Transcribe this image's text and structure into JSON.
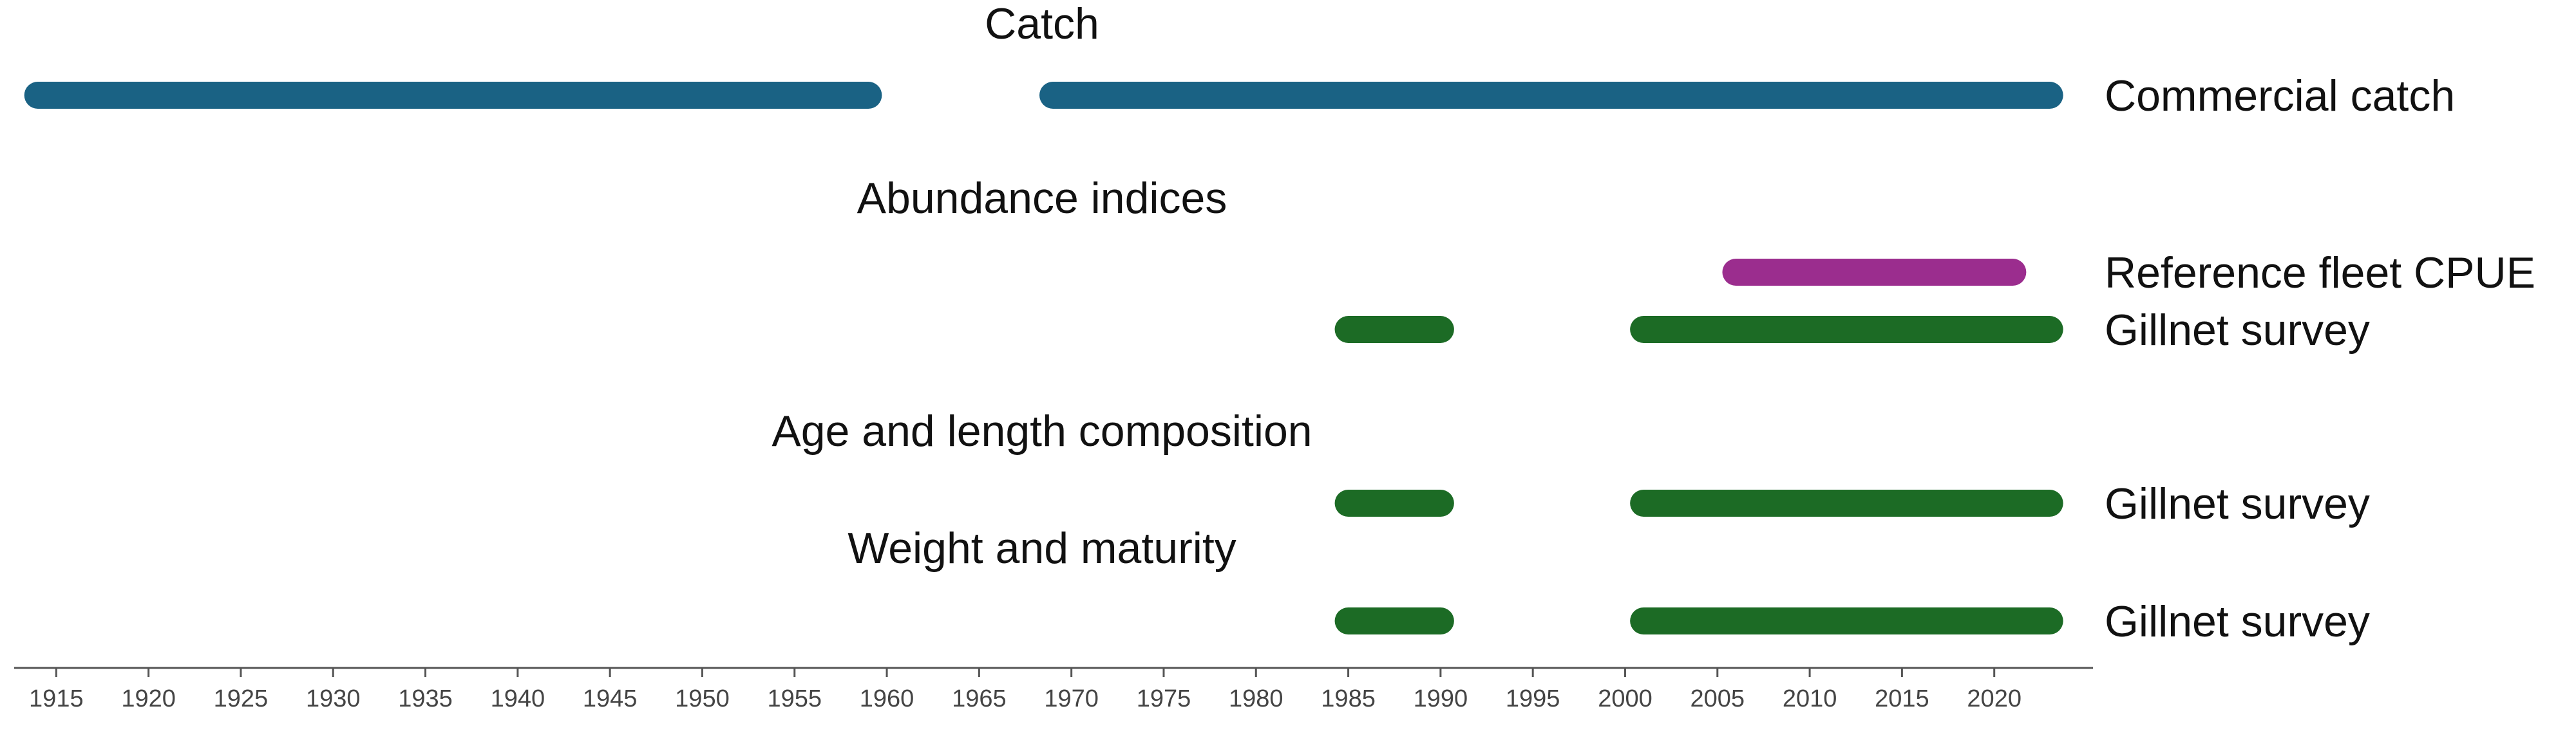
{
  "chart_data": {
    "type": "timeline",
    "x_axis": {
      "min": 1913,
      "max": 2025,
      "ticks": [
        1915,
        1920,
        1925,
        1930,
        1935,
        1940,
        1945,
        1950,
        1955,
        1960,
        1965,
        1970,
        1975,
        1980,
        1985,
        1990,
        1995,
        2000,
        2005,
        2010,
        2015,
        2020
      ],
      "label": ""
    },
    "colors": {
      "catch": "#1a6284",
      "cpue": "#9b2d8e",
      "survey": "#1c6b25"
    },
    "sections": [
      {
        "title": "Catch",
        "rows": [
          {
            "label": "Commercial catch",
            "color": "#1a6284",
            "segments": [
              [
                1914,
                1959
              ],
              [
                1969,
                2023
              ]
            ]
          }
        ]
      },
      {
        "title": "Abundance indices",
        "rows": [
          {
            "label": "Reference fleet CPUE",
            "color": "#9b2d8e",
            "segments": [
              [
                2006,
                2021
              ]
            ]
          },
          {
            "label": "Gillnet survey",
            "color": "#1c6b25",
            "segments": [
              [
                1985,
                1990
              ],
              [
                2001,
                2023
              ]
            ]
          }
        ]
      },
      {
        "title": "Age and length composition",
        "rows": [
          {
            "label": "Gillnet survey",
            "color": "#1c6b25",
            "segments": [
              [
                1985,
                1990
              ],
              [
                2001,
                2023
              ]
            ]
          }
        ]
      },
      {
        "title": "Weight and maturity",
        "rows": [
          {
            "label": "Gillnet survey",
            "color": "#1c6b25",
            "segments": [
              [
                1985,
                1990
              ],
              [
                2001,
                2023
              ]
            ]
          }
        ]
      }
    ]
  }
}
